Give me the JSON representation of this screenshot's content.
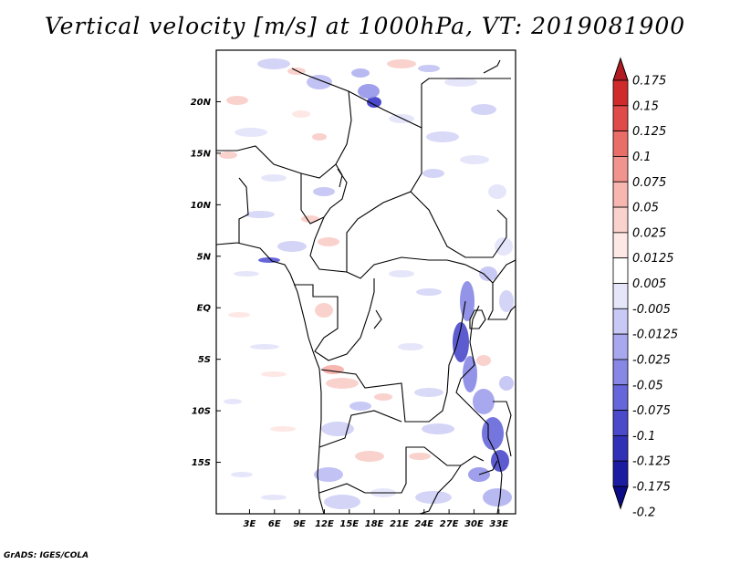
{
  "title": "Vertical velocity [m/s] at 1000hPa, VT: 2019081900",
  "credit": "GrADS: IGES/COLA",
  "map": {
    "lon_range": [
      -1,
      35
    ],
    "lat_range": [
      -20,
      25
    ],
    "lat_ticks": [
      {
        "value": 20,
        "label": "20N"
      },
      {
        "value": 15,
        "label": "15N"
      },
      {
        "value": 10,
        "label": "10N"
      },
      {
        "value": 5,
        "label": "5N"
      },
      {
        "value": 0,
        "label": "EQ"
      },
      {
        "value": -5,
        "label": "5S"
      },
      {
        "value": -10,
        "label": "10S"
      },
      {
        "value": -15,
        "label": "15S"
      }
    ],
    "lon_ticks": [
      {
        "value": 3,
        "label": "3E"
      },
      {
        "value": 6,
        "label": "6E"
      },
      {
        "value": 9,
        "label": "9E"
      },
      {
        "value": 12,
        "label": "12E"
      },
      {
        "value": 15,
        "label": "15E"
      },
      {
        "value": 18,
        "label": "18E"
      },
      {
        "value": 21,
        "label": "21E"
      },
      {
        "value": 24,
        "label": "24E"
      },
      {
        "value": 27,
        "label": "27E"
      },
      {
        "value": 30,
        "label": "30E"
      },
      {
        "value": 33,
        "label": "33E"
      }
    ]
  },
  "colorbar": {
    "levels": [
      "0.175",
      "0.15",
      "0.125",
      "0.1",
      "0.075",
      "0.05",
      "0.025",
      "0.0125",
      "0.005",
      "-0.005",
      "-0.0125",
      "-0.025",
      "-0.05",
      "-0.075",
      "-0.1",
      "-0.125",
      "-0.175",
      "-0.2"
    ],
    "colors": [
      "#b01c22",
      "#cf2b2b",
      "#e04a48",
      "#ea6e68",
      "#f1948e",
      "#f7b6b0",
      "#fad2cd",
      "#fde8e5",
      "#ffffff",
      "#e6e6fb",
      "#c9c9f5",
      "#a8a8ef",
      "#8787e6",
      "#6666da",
      "#4a4acb",
      "#3131b8",
      "#1c1ca2",
      "#0c0c88"
    ]
  }
}
